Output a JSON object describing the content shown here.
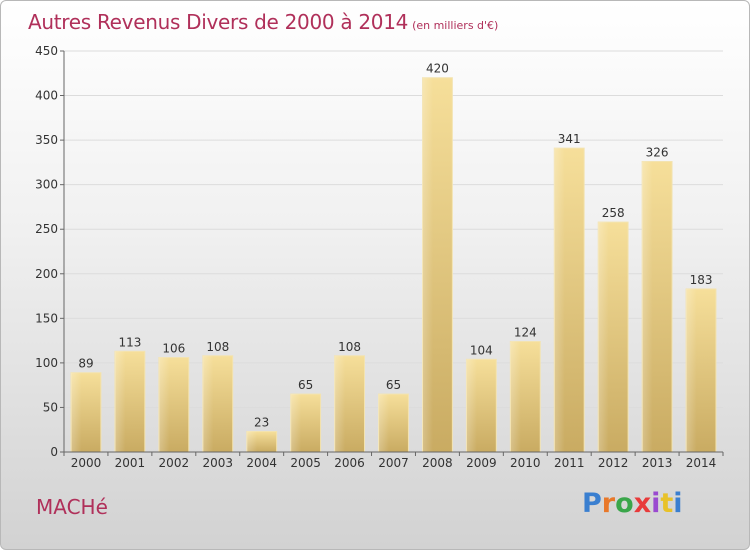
{
  "header": {
    "title": "Autres Revenus Divers de 2000 à 2014",
    "subtitle": "(en milliers d'€)"
  },
  "footer": {
    "place": "MACHé",
    "logo": "Proxiti",
    "logo_colors": [
      "#3a7fd0",
      "#e8782a",
      "#3aa64a",
      "#e83a3a",
      "#9a4ad0",
      "#e8c22a",
      "#3a7fd0"
    ]
  },
  "chart_data": {
    "type": "bar",
    "title": "Autres Revenus Divers de 2000 à 2014",
    "subtitle": "(en milliers d'€)",
    "xlabel": "",
    "ylabel": "",
    "categories": [
      "2000",
      "2001",
      "2002",
      "2003",
      "2004",
      "2005",
      "2006",
      "2007",
      "2008",
      "2009",
      "2010",
      "2011",
      "2012",
      "2013",
      "2014"
    ],
    "values": [
      89,
      113,
      106,
      108,
      23,
      65,
      108,
      65,
      420,
      104,
      124,
      341,
      258,
      326,
      183
    ],
    "ylim": [
      0,
      450
    ],
    "yticks": [
      0,
      50,
      100,
      150,
      200,
      250,
      300,
      350,
      400,
      450
    ],
    "grid": true,
    "bar_color": "#e8cf8a",
    "data_labels": true
  }
}
